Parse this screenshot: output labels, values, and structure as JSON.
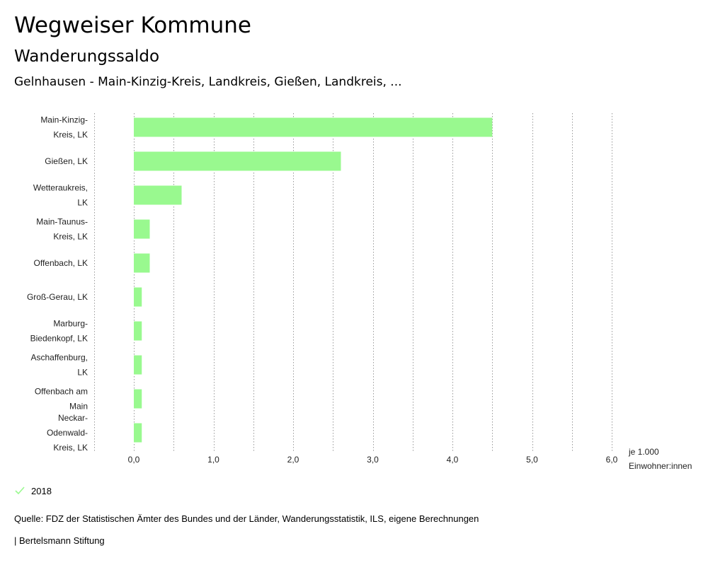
{
  "header": {
    "title": "Wegweiser Kommune",
    "subtitle": "Wanderungssaldo",
    "filter": "Gelnhausen - Main-Kinzig-Kreis, Landkreis, Gießen, Landkreis, ..."
  },
  "legend": {
    "label": "2018",
    "color": "#99f98f"
  },
  "footer": {
    "source": "Quelle: FDZ der Statistischen Ämter des Bundes und der Länder, Wanderungsstatistik, ILS, eigene Berechnungen",
    "publisher": "| Bertelsmann Stiftung"
  },
  "chart_data": {
    "type": "bar",
    "orientation": "horizontal",
    "categories": [
      [
        "Main-Kinzig-",
        "Kreis, LK"
      ],
      [
        "Gießen, LK"
      ],
      [
        "Wetteraukreis,",
        "LK"
      ],
      [
        "Main-Taunus-",
        "Kreis, LK"
      ],
      [
        "Offenbach, LK"
      ],
      [
        "Groß-Gerau, LK"
      ],
      [
        "Marburg-",
        "Biedenkopf, LK"
      ],
      [
        "Aschaffenburg,",
        "LK"
      ],
      [
        "Offenbach am",
        "Main"
      ],
      [
        "Neckar-",
        "Odenwald-",
        "Kreis, LK"
      ]
    ],
    "series": [
      {
        "name": "2018",
        "values": [
          4.5,
          2.6,
          0.6,
          0.2,
          0.2,
          0.1,
          0.1,
          0.1,
          0.1,
          0.1
        ]
      }
    ],
    "xlim": [
      -0.5,
      6.0
    ],
    "ticks": [
      "0,0",
      "1,0",
      "2,0",
      "3,0",
      "4,0",
      "5,0",
      "6,0"
    ],
    "tick_values": [
      0,
      1,
      2,
      3,
      4,
      5,
      6
    ],
    "xlabel": [
      "je 1.000",
      "Einwohner:innen"
    ],
    "grid": true
  }
}
